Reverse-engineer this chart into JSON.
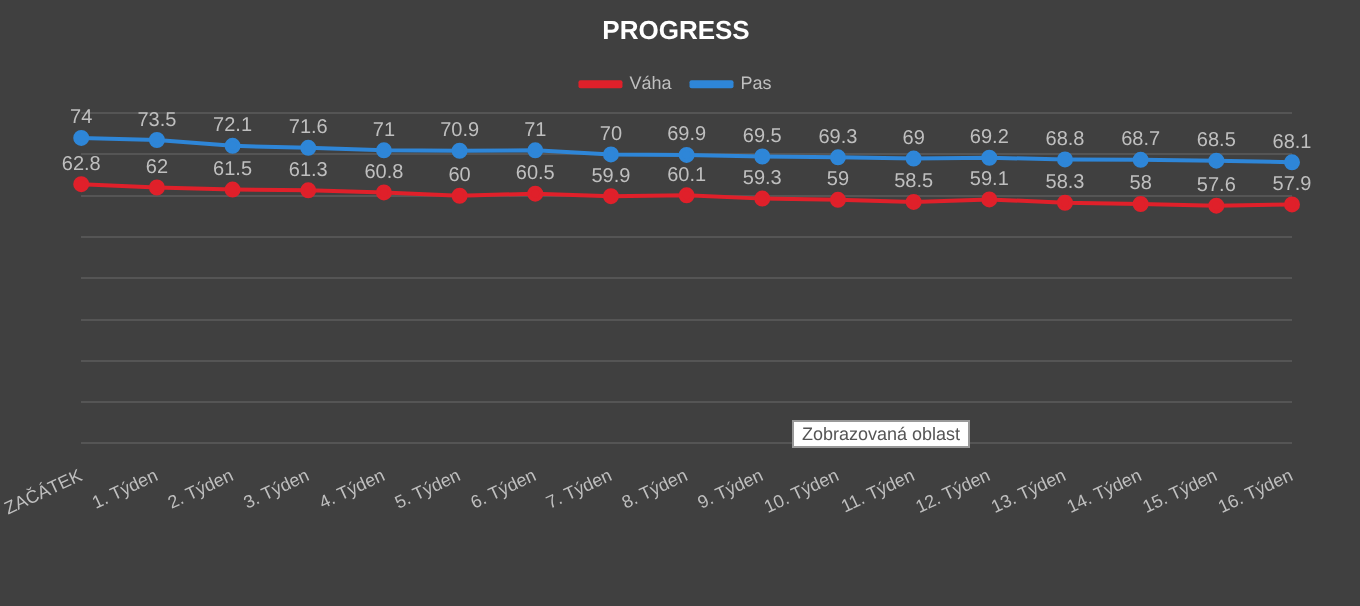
{
  "chart_data": {
    "type": "line",
    "title": "PROGRESS",
    "categories": [
      "ZAČÁTEK",
      "1. Týden",
      "2. Týden",
      "3. Týden",
      "4. Týden",
      "5. Týden",
      "6. Týden",
      "7. Týden",
      "8. Týden",
      "9. Týden",
      "10. Týden",
      "11. Týden",
      "12. Týden",
      "13. Týden",
      "14. Týden",
      "15. Týden",
      "16. Týden"
    ],
    "series": [
      {
        "name": "Váha",
        "color": "#e0202a",
        "values": [
          62.8,
          62,
          61.5,
          61.3,
          60.8,
          60,
          60.5,
          59.9,
          60.1,
          59.3,
          59,
          58.5,
          59.1,
          58.3,
          58,
          57.6,
          57.9
        ]
      },
      {
        "name": "Pas",
        "color": "#2e86d8",
        "values": [
          74,
          73.5,
          72.1,
          71.6,
          71,
          70.9,
          71,
          70,
          69.9,
          69.5,
          69.3,
          69,
          69.2,
          68.8,
          68.7,
          68.5,
          68.1
        ]
      }
    ],
    "ylim": [
      0,
      80
    ],
    "yticks": [
      {
        "value": 0,
        "label": null
      },
      {
        "value": 10,
        "label": null
      },
      {
        "value": 20,
        "label": null
      },
      {
        "value": 30,
        "label": null
      },
      {
        "value": 40,
        "label": null
      },
      {
        "value": 50,
        "label": null
      },
      {
        "value": 60,
        "label": null
      },
      {
        "value": 70,
        "label": null
      },
      {
        "value": 80,
        "label": null
      }
    ],
    "tick_labels": "x",
    "grid": "y",
    "legend": "top",
    "marker": "circle",
    "data_labels": true,
    "annotations": [
      "Zobrazovaná oblast"
    ]
  }
}
